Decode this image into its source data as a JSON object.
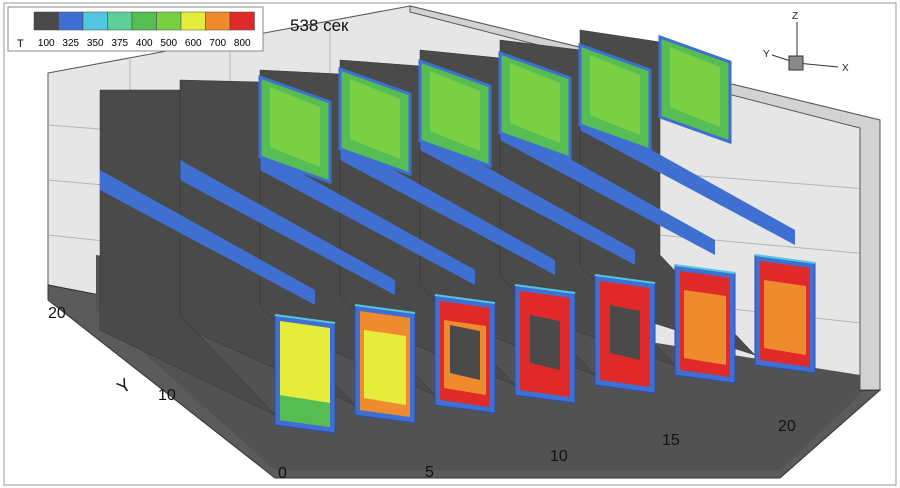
{
  "chart_data": {
    "type": "heatmap",
    "title": "538 сек",
    "legend": {
      "variable": "T",
      "placement": "top-left",
      "levels": [
        {
          "value": "100",
          "color": "#4a4a4a"
        },
        {
          "value": "325",
          "color": "#3f6fd0"
        },
        {
          "value": "350",
          "color": "#53c6e0"
        },
        {
          "value": "375",
          "color": "#5ecf9a"
        },
        {
          "value": "400",
          "color": "#56bd52"
        },
        {
          "value": "500",
          "color": "#7ad044"
        },
        {
          "value": "600",
          "color": "#e6ec3c"
        },
        {
          "value": "700",
          "color": "#ef8a2e"
        },
        {
          "value": "800",
          "color": "#e02a2a"
        }
      ]
    },
    "x_axis": {
      "label": "",
      "ticks": [
        "5",
        "10",
        "15",
        "20"
      ]
    },
    "y_axis": {
      "label": "Y",
      "ticks": [
        "0",
        "10",
        "20"
      ]
    },
    "triad": {
      "x": "X",
      "y": "Y",
      "z": "Z"
    },
    "slices": [
      {
        "index": 1,
        "lower_field": "yellow-green",
        "upper_field": "none"
      },
      {
        "index": 2,
        "lower_field": "yellow-orange",
        "upper_field": "green"
      },
      {
        "index": 3,
        "lower_field": "red-orange ring, cold core",
        "upper_field": "green"
      },
      {
        "index": 4,
        "lower_field": "red ring, cold core",
        "upper_field": "green"
      },
      {
        "index": 5,
        "lower_field": "red ring, cold core",
        "upper_field": "green"
      },
      {
        "index": 6,
        "lower_field": "orange-red",
        "upper_field": "green"
      },
      {
        "index": 7,
        "lower_field": "orange-red",
        "upper_field": "green"
      }
    ]
  }
}
